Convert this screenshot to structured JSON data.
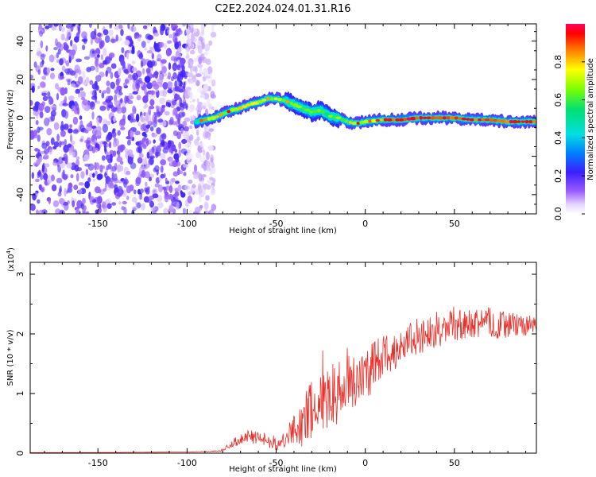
{
  "figure": {
    "title": "C2E2.2024.024.01.31.R16"
  },
  "colors": {
    "snr_line": "#e8302a",
    "frame": "#000000"
  },
  "chart_data": [
    {
      "id": "spectrogram",
      "type": "heatmap",
      "title": "C2E2.2024.024.01.31.R16",
      "xlabel": "Height of straight line (km)",
      "ylabel": "Frequency (Hz)",
      "xlim": [
        -188,
        96
      ],
      "ylim": [
        -50,
        49
      ],
      "xticks": [
        -150,
        -100,
        -50,
        0,
        50
      ],
      "yticks": [
        -40,
        -20,
        0,
        20,
        40
      ],
      "grid": false,
      "colorbar": {
        "label": "Normalized spectral amplitude",
        "range": [
          0,
          1
        ],
        "ticks": [
          "0.0",
          "0.2",
          "0.4",
          "0.6",
          "0.8"
        ],
        "tick_values": [
          0,
          0.2,
          0.4,
          0.6,
          0.8
        ],
        "colormap": "rainbow"
      },
      "noise_region": {
        "x_range": [
          -188,
          -85
        ],
        "amplitude": 0.2
      },
      "signal_ridge": [
        {
          "x": -95,
          "f": -2
        },
        {
          "x": -90,
          "f": -1
        },
        {
          "x": -85,
          "f": 0
        },
        {
          "x": -80,
          "f": 2
        },
        {
          "x": -75,
          "f": 4
        },
        {
          "x": -70,
          "f": 5
        },
        {
          "x": -65,
          "f": 7
        },
        {
          "x": -60,
          "f": 8
        },
        {
          "x": -55,
          "f": 10
        },
        {
          "x": -50,
          "f": 10
        },
        {
          "x": -45,
          "f": 9
        },
        {
          "x": -40,
          "f": 7
        },
        {
          "x": -35,
          "f": 5
        },
        {
          "x": -30,
          "f": 3
        },
        {
          "x": -25,
          "f": 4
        },
        {
          "x": -20,
          "f": 1
        },
        {
          "x": -15,
          "f": 0
        },
        {
          "x": -10,
          "f": -2
        },
        {
          "x": -5,
          "f": -3
        },
        {
          "x": 0,
          "f": -2
        },
        {
          "x": 10,
          "f": -1
        },
        {
          "x": 20,
          "f": -1
        },
        {
          "x": 30,
          "f": 0
        },
        {
          "x": 40,
          "f": 0
        },
        {
          "x": 50,
          "f": 0
        },
        {
          "x": 60,
          "f": -1
        },
        {
          "x": 70,
          "f": -1
        },
        {
          "x": 80,
          "f": -2
        },
        {
          "x": 90,
          "f": -2
        },
        {
          "x": 96,
          "f": -2
        }
      ]
    },
    {
      "id": "snr",
      "type": "line",
      "xlabel": "Height of straight line (km)",
      "ylabel": "SNR (10 * v/v)",
      "yscale_label": "(x10",
      "yscale_exp": "4",
      "yscale_close": ")",
      "xlim": [
        -188,
        96
      ],
      "ylim": [
        0,
        3.2
      ],
      "xticks": [
        -150,
        -100,
        -50,
        0,
        50
      ],
      "yticks": [
        0,
        1,
        2,
        3
      ],
      "grid": false,
      "series": [
        {
          "color": "#e8302a",
          "x": [
            -188,
            -150,
            -100,
            -85,
            -80,
            -75,
            -70,
            -65,
            -60,
            -55,
            -50,
            -45,
            -40,
            -35,
            -30,
            -25,
            -20,
            -15,
            -10,
            -5,
            0,
            5,
            10,
            15,
            20,
            25,
            30,
            35,
            40,
            45,
            50,
            55,
            60,
            65,
            70,
            75,
            80,
            85,
            90,
            96
          ],
          "y": [
            0.01,
            0.01,
            0.02,
            0.03,
            0.05,
            0.15,
            0.25,
            0.28,
            0.25,
            0.2,
            0.15,
            0.2,
            0.4,
            0.55,
            0.7,
            0.85,
            0.95,
            1.05,
            1.15,
            1.25,
            1.35,
            1.45,
            1.6,
            1.7,
            1.8,
            1.9,
            1.95,
            2.0,
            2.05,
            2.1,
            2.1,
            2.15,
            2.15,
            2.2,
            2.2,
            2.15,
            2.15,
            2.15,
            2.15,
            2.15
          ],
          "spread": [
            0,
            0,
            0,
            0.01,
            0.02,
            0.06,
            0.1,
            0.12,
            0.1,
            0.1,
            0.1,
            0.15,
            0.3,
            0.45,
            0.5,
            0.55,
            0.55,
            0.55,
            0.5,
            0.5,
            0.45,
            0.45,
            0.4,
            0.35,
            0.3,
            0.3,
            0.3,
            0.28,
            0.28,
            0.28,
            0.28,
            0.28,
            0.26,
            0.26,
            0.25,
            0.25,
            0.22,
            0.2,
            0.18,
            0.15
          ]
        }
      ]
    }
  ]
}
